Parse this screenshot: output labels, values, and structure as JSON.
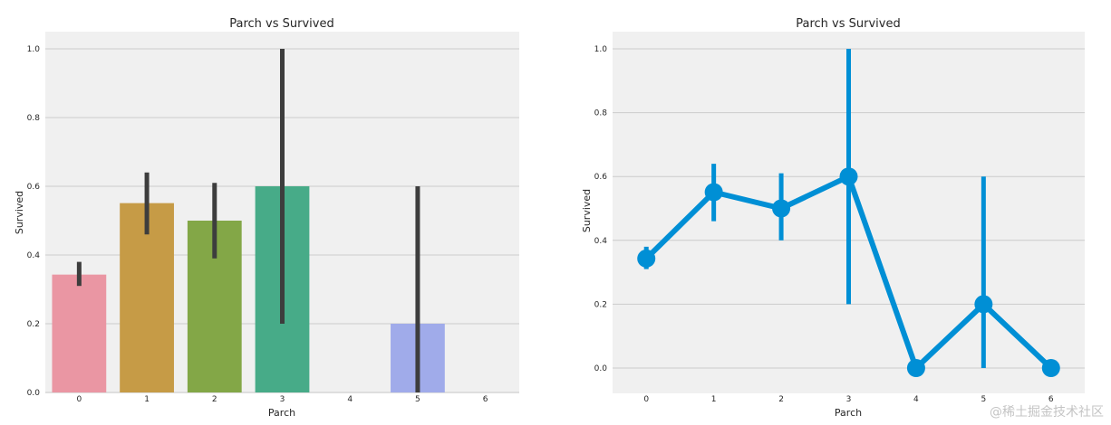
{
  "chart_data": [
    {
      "type": "bar",
      "title": "Parch vs Survived",
      "xlabel": "Parch",
      "ylabel": "Survived",
      "categories": [
        "0",
        "1",
        "2",
        "3",
        "4",
        "5",
        "6"
      ],
      "values": [
        0.343,
        0.551,
        0.5,
        0.6,
        0,
        0.2,
        0
      ],
      "ci": [
        [
          0.31,
          0.38
        ],
        [
          0.46,
          0.64
        ],
        [
          0.39,
          0.61
        ],
        [
          0.2,
          1.0
        ],
        null,
        [
          0.0,
          0.6
        ],
        null
      ],
      "colors": [
        "#ea96a3",
        "#c69b46",
        "#83a747",
        "#47ab88",
        "#4aa0c4",
        "#a0abea",
        "#d48bd6"
      ],
      "yticks": [
        "0.0",
        "0.2",
        "0.4",
        "0.6",
        "0.8",
        "1.0"
      ],
      "ylim": [
        0,
        1.05
      ],
      "grid": true
    },
    {
      "type": "line",
      "title": "Parch vs Survived",
      "xlabel": "Parch",
      "ylabel": "Survived",
      "categories": [
        "0",
        "1",
        "2",
        "3",
        "4",
        "5",
        "6"
      ],
      "values": [
        0.343,
        0.551,
        0.5,
        0.6,
        0.0,
        0.2,
        0.0
      ],
      "ci": [
        [
          0.31,
          0.38
        ],
        [
          0.46,
          0.64
        ],
        [
          0.4,
          0.61
        ],
        [
          0.2,
          1.0
        ],
        [
          0.0,
          0.0
        ],
        [
          0.0,
          0.6
        ],
        [
          0.0,
          0.0
        ]
      ],
      "color": "#008fd5",
      "yticks": [
        "0.0",
        "0.2",
        "0.4",
        "0.6",
        "0.8",
        "1.0"
      ],
      "ylim": [
        -0.08,
        1.05
      ],
      "grid": true
    }
  ],
  "watermark": "@稀土掘金技术社区"
}
